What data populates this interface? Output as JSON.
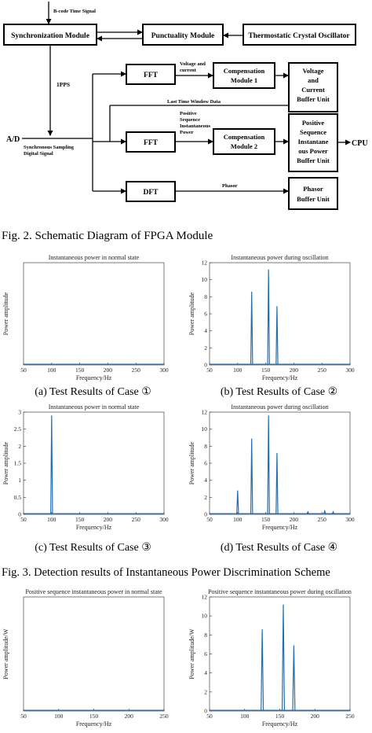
{
  "diagram": {
    "input_label": "B-code Time Signal",
    "sync_module": "Synchronization Module",
    "punctuality_module": "Punctuality Module",
    "oscillator": "Thermostatic Crystal Oscillator",
    "pps": "1PPS",
    "ad": "A/D",
    "sampling_label_1": "Synchronous Sampling",
    "sampling_label_2": "Digital Signal",
    "fft1": "FFT",
    "fft2": "FFT",
    "dft": "DFT",
    "vc_label_1": "Voltage and",
    "vc_label_2": "current",
    "psip_label_1": "Positive",
    "psip_label_2": "Sequence",
    "psip_label_3": "Instantaneous",
    "psip_label_4": "Power",
    "comp1_line1": "Compensation",
    "comp1_line2": "Module 1",
    "comp2_line1": "Compensation",
    "comp2_line2": "Module 2",
    "last_window": "Last Time Window Data",
    "phasor_label": "Phasor",
    "vc_buffer": [
      "Voltage",
      "and",
      "Current",
      "Buffer Unit"
    ],
    "ps_buffer": [
      "Positive",
      "Sequence",
      "Instantane",
      "ous Power",
      "Buffer Unit"
    ],
    "phasor_buffer": [
      "Phasor",
      "Buffer Unit"
    ],
    "cpu": "CPU"
  },
  "captions": {
    "fig2": "Fig. 2. Schematic Diagram of  FPGA Module",
    "fig3": "Fig. 3. Detection results of Instantaneous Power Discrimination Scheme",
    "case_a": "(a) Test Results of Case ①",
    "case_b": "(b) Test Results of Case ②",
    "case_c": "(c) Test Results of Case ③",
    "case_d": "(d) Test Results of Case ④"
  },
  "chart_data": [
    {
      "type": "line",
      "title": "Instantaneous power in normal state",
      "xlabel": "Frequency/Hz",
      "ylabel": "Power amplitude",
      "xlim": [
        50,
        300
      ],
      "xticks": [
        50,
        100,
        150,
        200,
        250,
        300
      ],
      "ylim": [
        0,
        1
      ],
      "yticks": [],
      "peaks": [],
      "color": "#1f6fb5"
    },
    {
      "type": "line",
      "title": "Instantaneous power during oscillation",
      "xlabel": "Frequency/Hz",
      "ylabel": "Power amplitude",
      "xlim": [
        50,
        300
      ],
      "xticks": [
        50,
        100,
        150,
        200,
        250,
        300
      ],
      "ylim": [
        0,
        12
      ],
      "yticks": [
        0,
        2,
        4,
        6,
        8,
        10,
        12
      ],
      "peaks": [
        {
          "x": 125,
          "y": 8.6
        },
        {
          "x": 155,
          "y": 11.2
        },
        {
          "x": 170,
          "y": 6.9
        }
      ],
      "color": "#1f6fb5"
    },
    {
      "type": "line",
      "title": "Instantaneous power in normal state",
      "xlabel": "Frequency/Hz",
      "ylabel": "Power amplitude",
      "xlim": [
        50,
        300
      ],
      "xticks": [
        50,
        100,
        150,
        200,
        250,
        300
      ],
      "ylim": [
        0,
        3
      ],
      "yticks": [
        0,
        0.5,
        1,
        1.5,
        2,
        2.5,
        3
      ],
      "peaks": [
        {
          "x": 100,
          "y": 2.9
        }
      ],
      "color": "#1f6fb5"
    },
    {
      "type": "line",
      "title": "Instantaneous power during oscillation",
      "xlabel": "Frequency/Hz",
      "ylabel": "Power amplitude",
      "xlim": [
        50,
        300
      ],
      "xticks": [
        50,
        100,
        150,
        200,
        250,
        300
      ],
      "ylim": [
        0,
        12
      ],
      "yticks": [
        0,
        2,
        4,
        6,
        8,
        10,
        12
      ],
      "peaks": [
        {
          "x": 100,
          "y": 2.8
        },
        {
          "x": 125,
          "y": 8.9
        },
        {
          "x": 155,
          "y": 11.6
        },
        {
          "x": 170,
          "y": 7.2
        },
        {
          "x": 225,
          "y": 0.3
        },
        {
          "x": 255,
          "y": 0.4
        },
        {
          "x": 270,
          "y": 0.3
        }
      ],
      "color": "#1f6fb5"
    },
    {
      "type": "line",
      "title": "Positive sequence instantaneous power in normal state",
      "xlabel": "Frequency/Hz",
      "ylabel": "Power amplitude/W",
      "xlim": [
        50,
        250
      ],
      "xticks": [
        50,
        100,
        150,
        200,
        250
      ],
      "ylim": [
        0,
        1
      ],
      "yticks": [],
      "peaks": [],
      "color": "#1f6fb5"
    },
    {
      "type": "line",
      "title": "Positive sequence instantaneous power during oscillation",
      "xlabel": "Frequency/Hz",
      "ylabel": "Power amplitude/W",
      "xlim": [
        50,
        250
      ],
      "xticks": [
        50,
        100,
        150,
        200,
        250
      ],
      "ylim": [
        0,
        12
      ],
      "yticks": [
        0,
        2,
        4,
        6,
        8,
        10,
        12
      ],
      "peaks": [
        {
          "x": 125,
          "y": 8.6
        },
        {
          "x": 155,
          "y": 11.2
        },
        {
          "x": 170,
          "y": 6.9
        }
      ],
      "color": "#1f6fb5"
    }
  ]
}
